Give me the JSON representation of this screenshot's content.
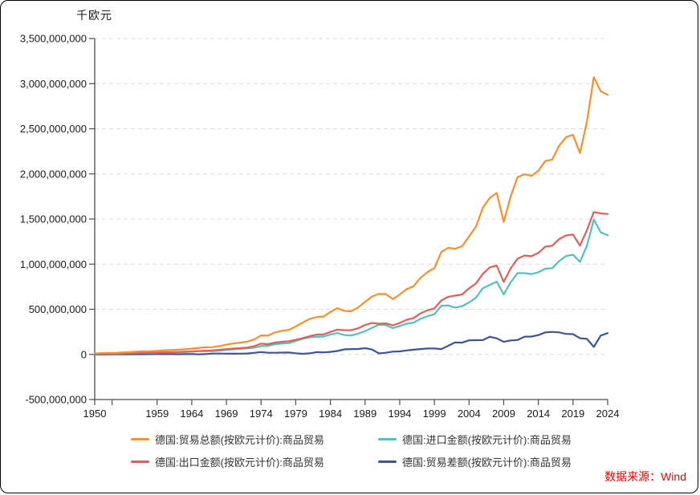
{
  "colors": {
    "axis": "#4d4d4d",
    "gridline": "#dcdcdc",
    "tick_text": "#1a1a1a",
    "source_text": "#ea0000",
    "background": "#ffffff",
    "border": "#000000"
  },
  "source": {
    "text": "数据来源：Wind"
  },
  "chart_data": {
    "type": "line",
    "y_axis_unit": "千欧元",
    "values_unit_note": "series values are in millions of thousand-euros (i.e. billions of EUR); multiply by 1,000,000 to match the axis (千欧元)",
    "value_scale_to_axis": 1000000,
    "grid": "horizontal-dashed",
    "legend_position": "bottom",
    "y_axis": {
      "min_bn": -500,
      "max_bn": 3500,
      "tick_values_bn": [
        3500,
        3000,
        2500,
        2000,
        1500,
        1000,
        500,
        0,
        -500
      ],
      "tick_labels": [
        "3,500,000,000",
        "3,000,000,000",
        "2,500,000,000",
        "2,000,000,000",
        "1,500,000,000",
        "1,000,000,000",
        "500,000,000",
        "0",
        "-500,000,000"
      ]
    },
    "x_axis": {
      "start_year": 1950,
      "end_year": 2024,
      "tick_years": [
        1950,
        1952.5,
        1959,
        1964,
        1969,
        1974,
        1979,
        1984,
        1989,
        1994,
        1999,
        2004,
        2009,
        2014,
        2019,
        2024
      ],
      "tick_labels": [
        "1950",
        "",
        "1959",
        "1964",
        "1969",
        "1974",
        "1979",
        "1984",
        "1989",
        "1994",
        "1999",
        "2004",
        "2009",
        "2014",
        "2019",
        "2024"
      ]
    },
    "years": [
      1950,
      1951,
      1952,
      1953,
      1954,
      1955,
      1956,
      1957,
      1958,
      1959,
      1960,
      1961,
      1962,
      1963,
      1964,
      1965,
      1966,
      1967,
      1968,
      1969,
      1970,
      1971,
      1972,
      1973,
      1974,
      1975,
      1976,
      1977,
      1978,
      1979,
      1980,
      1981,
      1982,
      1983,
      1984,
      1985,
      1986,
      1987,
      1988,
      1989,
      1990,
      1991,
      1992,
      1993,
      1994,
      1995,
      1996,
      1997,
      1998,
      1999,
      2000,
      2001,
      2002,
      2003,
      2004,
      2005,
      2006,
      2007,
      2008,
      2009,
      2010,
      2011,
      2012,
      2013,
      2014,
      2015,
      2016,
      2017,
      2018,
      2019,
      2020,
      2021,
      2022,
      2023,
      2024
    ],
    "series": [
      {
        "key": "total",
        "label": "德国:贸易总额(按欧元计价):商品贸易",
        "color": "#f5902c",
        "values": [
          10.1,
          15.1,
          17.0,
          17.7,
          21.1,
          25.6,
          29.8,
          34.5,
          35.1,
          39.3,
          46.2,
          48.6,
          52.2,
          56.4,
          63.3,
          72.4,
          78.4,
          80.5,
          91.8,
          108.2,
          120.4,
          130.6,
          142.0,
          165.3,
          210.3,
          207.6,
          244.0,
          260.9,
          271.6,
          309.2,
          352.5,
          392.2,
          413.3,
          418.9,
          469.8,
          511.2,
          482.4,
          477.9,
          519.4,
          582.7,
          641.3,
          669.6,
          668.2,
          612.1,
          664.0,
          722.8,
          754.8,
          849.1,
          911.9,
          954.8,
          1135.7,
          1181.1,
          1169.8,
          1199.0,
          1306.9,
          1414.4,
          1627.0,
          1735.1,
          1789.9,
          1467.9,
          1749.0,
          1963.2,
          1995.7,
          1978.4,
          2033.8,
          2142.8,
          2158.7,
          2313.5,
          2407.4,
          2432.3,
          2230.3,
          2577.7,
          3071.4,
          2914.6,
          2876.0
        ]
      },
      {
        "key": "import",
        "label": "德国:进口金额(按欧元计价):商品贸易",
        "color": "#4fc1bf",
        "values": [
          5.8,
          7.6,
          8.3,
          8.2,
          9.9,
          12.5,
          14.1,
          16.1,
          16.2,
          18.3,
          21.7,
          22.6,
          25.1,
          26.6,
          30.0,
          35.8,
          37.1,
          35.8,
          41.1,
          49.9,
          56.2,
          61.0,
          65.8,
          74.1,
          91.9,
          94.6,
          112.7,
          120.5,
          125.2,
          148.2,
          172.9,
          189.9,
          193.8,
          198.0,
          220.8,
          236.6,
          213.4,
          209.6,
          229.7,
          256.9,
          293.2,
          329.2,
          325.0,
          290.8,
          315.4,
          339.6,
          351.4,
          394.8,
          423.5,
          444.8,
          538.3,
          542.8,
          518.5,
          534.5,
          575.4,
          628.1,
          734.0,
          769.9,
          805.8,
          664.6,
          797.1,
          902.0,
          899.9,
          890.4,
          910.1,
          949.2,
          954.9,
          1034.6,
          1090.0,
          1104.1,
          1025.6,
          1202.2,
          1494.0,
          1352.5,
          1320.0
        ]
      },
      {
        "key": "export",
        "label": "德国:出口金额(按欧元计价):商品贸易",
        "color": "#df5f5c",
        "values": [
          4.3,
          7.5,
          8.7,
          9.5,
          11.2,
          13.1,
          15.7,
          18.4,
          18.9,
          21.0,
          24.5,
          26.0,
          27.1,
          29.8,
          33.3,
          36.6,
          41.3,
          44.7,
          50.7,
          58.3,
          64.2,
          69.6,
          76.2,
          91.2,
          118.4,
          113.0,
          131.3,
          140.4,
          146.4,
          161.0,
          179.6,
          202.3,
          219.5,
          220.9,
          249.0,
          274.6,
          269.0,
          268.3,
          289.7,
          325.8,
          348.1,
          340.4,
          343.2,
          321.3,
          348.6,
          383.2,
          403.4,
          454.3,
          488.4,
          510.0,
          597.4,
          638.3,
          651.3,
          664.5,
          731.5,
          786.3,
          893.0,
          965.2,
          984.1,
          803.3,
          951.9,
          1061.2,
          1095.8,
          1088.0,
          1123.7,
          1193.6,
          1203.8,
          1278.9,
          1317.4,
          1328.2,
          1204.7,
          1375.5,
          1577.4,
          1562.1,
          1556.0
        ]
      },
      {
        "key": "balance",
        "label": "德国:贸易差额(按欧元计价):商品贸易",
        "color": "#3e5499",
        "values": [
          -1.5,
          -0.1,
          0.4,
          1.3,
          1.3,
          0.6,
          1.6,
          2.3,
          2.7,
          2.7,
          2.8,
          3.4,
          2.0,
          3.2,
          3.3,
          0.8,
          4.2,
          8.9,
          9.6,
          8.4,
          8.0,
          8.6,
          10.4,
          17.1,
          26.5,
          18.4,
          18.6,
          19.9,
          21.2,
          12.8,
          6.7,
          12.4,
          25.7,
          22.9,
          28.2,
          38.0,
          55.6,
          58.7,
          60.0,
          68.9,
          54.9,
          11.2,
          18.2,
          30.5,
          33.2,
          43.6,
          52.0,
          59.5,
          64.9,
          65.2,
          59.1,
          95.5,
          132.8,
          130.0,
          156.1,
          158.2,
          159.0,
          195.3,
          178.3,
          138.7,
          154.8,
          159.2,
          195.9,
          197.6,
          213.6,
          244.4,
          248.9,
          244.3,
          227.4,
          224.1,
          179.1,
          173.3,
          83.4,
          209.6,
          236.0
        ]
      }
    ],
    "draw_order": [
      3,
      1,
      2,
      0
    ]
  }
}
